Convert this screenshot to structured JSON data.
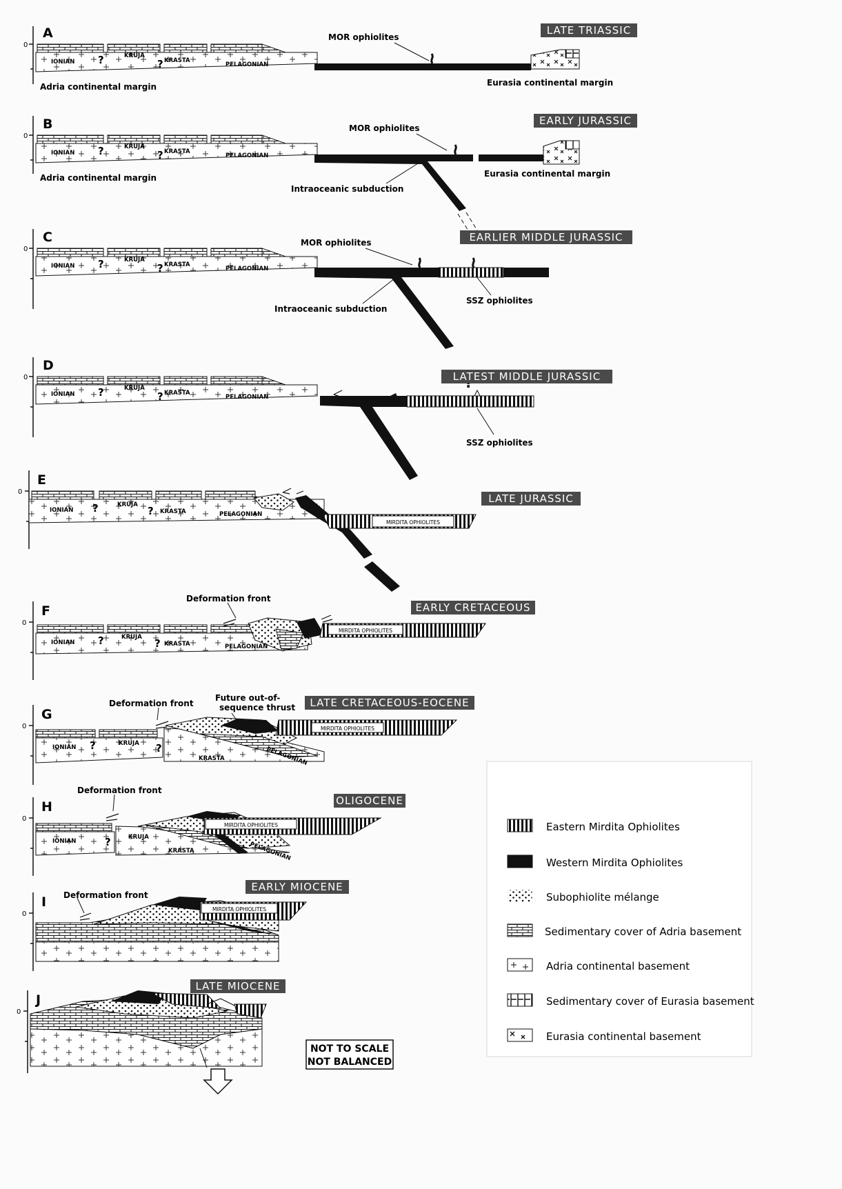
{
  "stages": [
    {
      "letter": "A",
      "tag": "LATE TRIASSIC"
    },
    {
      "letter": "B",
      "tag": "EARLY JURASSIC"
    },
    {
      "letter": "C",
      "tag": "EARLIER MIDDLE JURASSIC"
    },
    {
      "letter": "D",
      "tag": "LATEST MIDDLE JURASSIC"
    },
    {
      "letter": "E",
      "tag": "LATE JURASSIC"
    },
    {
      "letter": "F",
      "tag": "EARLY CRETACEOUS"
    },
    {
      "letter": "G",
      "tag": "LATE CRETACEOUS-EOCENE"
    },
    {
      "letter": "H",
      "tag": "OLIGOCENE"
    },
    {
      "letter": "I",
      "tag": "EARLY MIOCENE"
    },
    {
      "letter": "J",
      "tag": "LATE MIOCENE"
    }
  ],
  "zero_label": "0",
  "units": {
    "ionian": "IONIAN",
    "kruja": "KRUJA",
    "krasta": "KRASTA",
    "pelagonian": "PELAGONIAN",
    "q": "?"
  },
  "annotations": {
    "mor_ophiolites": "MOR ophiolites",
    "ssz_ophiolites": "SSZ ophiolites",
    "intraoceanic_subduction": "Intraoceanic subduction",
    "adria_margin": "Adria continental margin",
    "eurasia_margin": "Eurasia continental margin",
    "mirdita_ophiolites": "MIRDITA OPHIOLITES",
    "deformation_front": "Deformation front",
    "future_thrust_1": "Future out-of-",
    "future_thrust_2": "sequence thrust"
  },
  "legend": [
    {
      "pattern": "vertical-stripes",
      "label": "Eastern Mirdita Ophiolites"
    },
    {
      "pattern": "solid-black",
      "label": "Western Mirdita Ophiolites"
    },
    {
      "pattern": "dots",
      "label": "Subophiolite mélange"
    },
    {
      "pattern": "bricks",
      "label": "Sedimentary cover of Adria basement"
    },
    {
      "pattern": "plus",
      "label": "Adria continental basement"
    },
    {
      "pattern": "h-boxes",
      "label": "Sedimentary cover of Eurasia basement"
    },
    {
      "pattern": "crosses",
      "label": "Eurasia continental basement"
    }
  ],
  "notes": {
    "line1": "NOT TO SCALE",
    "line2": "NOT BALANCED"
  },
  "colors": {
    "tag_bg": "#4a4a4a",
    "ophiolite": "#111111",
    "background": "#fbfbfb"
  }
}
